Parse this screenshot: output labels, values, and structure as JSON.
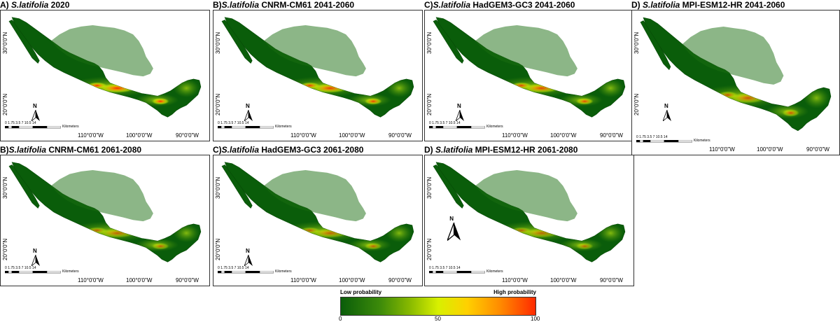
{
  "panels": [
    {
      "prefix": "A) ",
      "species": "S.latifolia",
      "suffix": " 2020",
      "intensity": 1.0
    },
    {
      "prefix": "B)",
      "species": "S.latifolia",
      "suffix": " CNRM-CM61 2041-2060",
      "intensity": 0.9
    },
    {
      "prefix": "C)",
      "species": "S.latifolia",
      "suffix": " HadGEM3-GC3 2041-2060",
      "intensity": 0.85
    },
    {
      "prefix": "D) ",
      "species": "S.latifolia",
      "suffix": " MPI-ESM12-HR 2041-2060",
      "intensity": 0.7
    },
    {
      "prefix": "B)",
      "species": "S.latifolia",
      "suffix": " CNRM-CM61 2061-2080",
      "intensity": 0.6
    },
    {
      "prefix": "C)",
      "species": "S.latifolia",
      "suffix": " HadGEM3-GC3 2061-2080",
      "intensity": 0.6
    },
    {
      "prefix": "D) ",
      "species": "S.latifolia",
      "suffix": " MPI-ESM12-HR 2061-2080",
      "intensity": 0.55
    }
  ],
  "axes": {
    "lat_labels": [
      "30°0'0\"N",
      "20°0'0\"N"
    ],
    "lon_labels": [
      "110°0'0\"W",
      "100°0'0\"W",
      "90°0'0\"W"
    ]
  },
  "scale": {
    "ticks": "0  1.75 3.5      7      10.5    14",
    "unit": "Kilometers"
  },
  "north_label": "N",
  "legend": {
    "low_label": "Low probability",
    "high_label": "High probability",
    "ticks": [
      "0",
      "50",
      "100"
    ]
  },
  "colors": {
    "low": "#0a5d0a",
    "mid": "#d8f000",
    "high": "#ff2a00"
  }
}
